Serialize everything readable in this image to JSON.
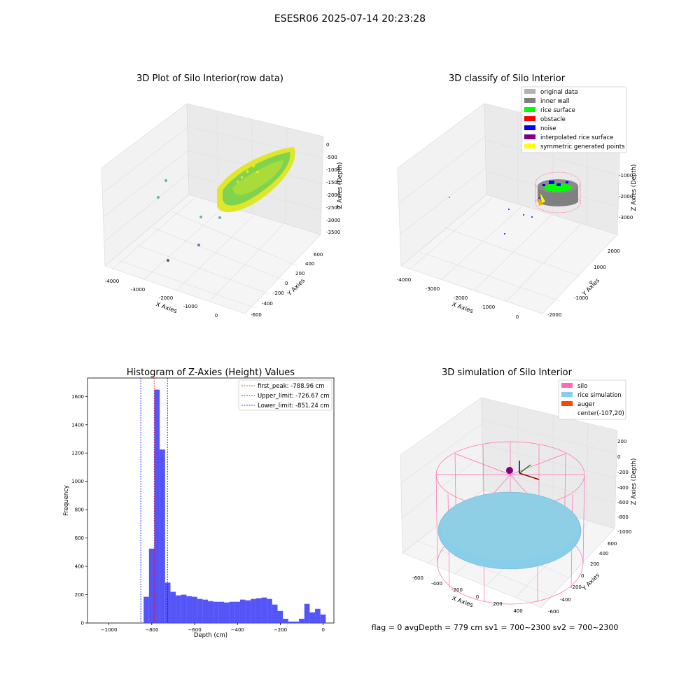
{
  "figure": {
    "suptitle": "ESESR06 2025-07-14 20:23:28",
    "footer": "flag = 0     avgDepth = 779 cm  sv1 = 700~2300  sv2 = 700~2300"
  },
  "chart_data": [
    {
      "type": "scatter",
      "subtype": "3d",
      "title": "3D Plot of Silo Interior(row data)",
      "xlabel": "X Axies",
      "ylabel": "Y Axies",
      "zlabel": "Z Axies (Depth)",
      "x_ticks": [
        "-4000",
        "-3000",
        "-2000",
        "-1000",
        "0"
      ],
      "y_ticks": [
        "-600",
        "-400",
        "-200",
        "0",
        "200",
        "400",
        "600"
      ],
      "z_ticks": [
        "0",
        "-500",
        "-1000",
        "-1500",
        "-2000",
        "-2500",
        "-3000",
        "-3500"
      ],
      "colormap": "viridis",
      "colors": {
        "main": "#9bd94a",
        "edge": "#e4ea1c",
        "outlier_teal": "#5fb8a8",
        "outlier_purple": "#7b6fb0"
      }
    },
    {
      "type": "scatter",
      "subtype": "3d",
      "title": "3D classify of Silo Interior",
      "xlabel": "X Axies",
      "ylabel": "Y Axies",
      "zlabel": "Z Axies (Depth)",
      "x_ticks": [
        "-4000",
        "-3000",
        "-2000",
        "-1000",
        "0"
      ],
      "y_ticks": [
        "-2000",
        "-1000",
        "0",
        "1000",
        "2000"
      ],
      "z_ticks": [
        "-1000",
        "-2000",
        "-3000"
      ],
      "legend_position": "top-right",
      "legend": [
        {
          "label": "original data",
          "color": "#b3b3b3"
        },
        {
          "label": "inner wall",
          "color": "#808080"
        },
        {
          "label": "rice surface",
          "color": "#00ff00"
        },
        {
          "label": "obstacle",
          "color": "#ff0000"
        },
        {
          "label": "noise",
          "color": "#0000ff"
        },
        {
          "label": "interpolated rice surface",
          "color": "#800080"
        },
        {
          "label": "symmetric generated points",
          "color": "#ffff00"
        }
      ]
    },
    {
      "type": "bar",
      "subtype": "histogram",
      "title": "Histogram of Z-Axies (Height) Values",
      "xlabel": "Depth (cm)",
      "ylabel": "Frequency",
      "xlim": [
        -1100,
        50
      ],
      "ylim": [
        0,
        1730
      ],
      "x_ticks": [
        "−1000",
        "−800",
        "−600",
        "−400",
        "−200",
        "0"
      ],
      "x_tick_values": [
        -1000,
        -800,
        -600,
        -400,
        -200,
        0
      ],
      "y_ticks": [
        "0",
        "200",
        "400",
        "600",
        "800",
        "1000",
        "1200",
        "1400",
        "1600"
      ],
      "y_tick_values": [
        0,
        200,
        400,
        600,
        800,
        1000,
        1200,
        1400,
        1600
      ],
      "bin_width": 25,
      "bin_starts": [
        -838,
        -813,
        -788,
        -763,
        -738,
        -713,
        -688,
        -663,
        -638,
        -613,
        -588,
        -563,
        -538,
        -513,
        -488,
        -463,
        -438,
        -413,
        -388,
        -363,
        -338,
        -313,
        -288,
        -263,
        -238,
        -213,
        -188,
        -163,
        -138,
        -113,
        -88,
        -63,
        -38,
        -13
      ],
      "values": [
        185,
        525,
        1648,
        1225,
        285,
        220,
        195,
        200,
        190,
        185,
        170,
        165,
        155,
        150,
        150,
        145,
        150,
        150,
        165,
        160,
        170,
        175,
        180,
        170,
        130,
        85,
        30,
        10,
        10,
        30,
        135,
        75,
        100,
        60
      ],
      "bar_color": "#4b4bf7",
      "vlines": [
        {
          "label": "first_peak: -788.96 cm",
          "x": -788.96,
          "color": "#ff0000"
        },
        {
          "label": "Upper_limit: -726.67 cm",
          "x": -726.67,
          "color": "#0000ff"
        },
        {
          "label": "Lower_limit: -851.24 cm",
          "x": -851.24,
          "color": "#0000ff"
        }
      ],
      "legend_position": "top-right"
    },
    {
      "type": "scatter",
      "subtype": "3d",
      "title": "3D simulation of Silo Interior",
      "xlabel": "X Axies",
      "ylabel": "Y Axies",
      "zlabel": "Z Axies (Depth)",
      "x_ticks": [
        "-600",
        "-400",
        "-200",
        "0",
        "200",
        "400"
      ],
      "y_ticks": [
        "-600",
        "-400",
        "-200",
        "0",
        "200",
        "400",
        "600"
      ],
      "z_ticks": [
        "200",
        "0",
        "-200",
        "-400",
        "-600",
        "-800",
        "-1000"
      ],
      "legend_position": "top-right",
      "legend": [
        {
          "label": "silo",
          "color": "#ff69b4"
        },
        {
          "label": "rice simulation",
          "color": "#87ceeb"
        },
        {
          "label": "auger",
          "color": "#ff4500"
        },
        {
          "label": "center(-107,20)",
          "color": ""
        }
      ]
    }
  ]
}
